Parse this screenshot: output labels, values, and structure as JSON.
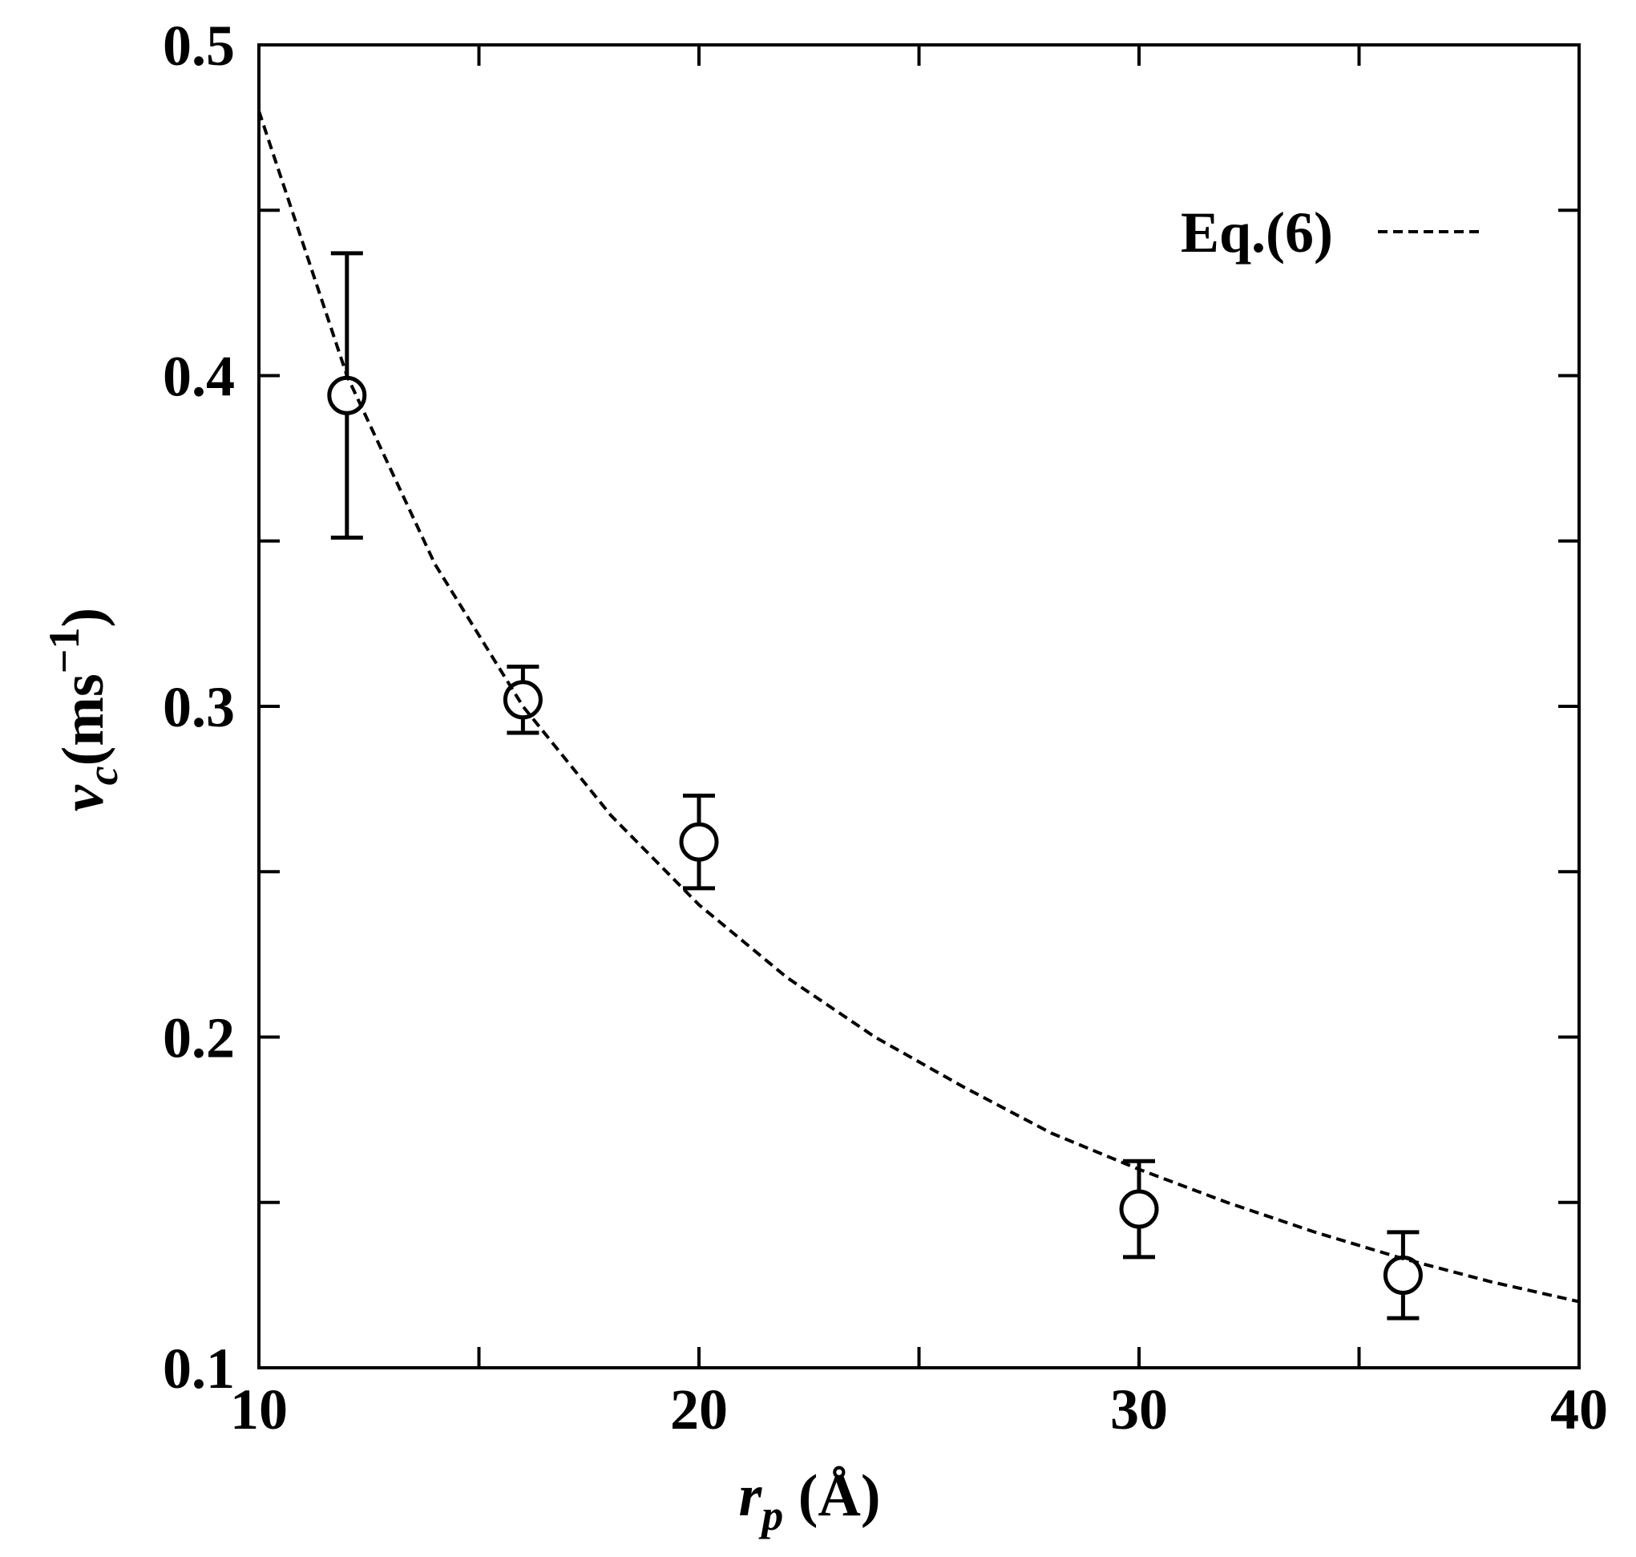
{
  "chart_data": {
    "type": "scatter",
    "xlabel": [
      "r",
      "p",
      " (Å)"
    ],
    "ylabel": [
      "v",
      "c",
      "(ms",
      "−1",
      ")"
    ],
    "xlim": [
      10,
      40
    ],
    "ylim": [
      0.1,
      0.5
    ],
    "xticks": [
      10,
      20,
      30,
      40
    ],
    "xminorticks": [
      15,
      25,
      35
    ],
    "yticks": [
      0.1,
      0.2,
      0.3,
      0.4,
      0.5
    ],
    "yminorticks": [
      0.15,
      0.25,
      0.35,
      0.45
    ],
    "legend": "upper right",
    "series": [
      {
        "type": "scatter",
        "color": "#000000",
        "x": [
          12,
          16,
          20,
          30,
          36
        ],
        "values": [
          0.394,
          0.302,
          0.259,
          0.148,
          0.128
        ],
        "errors": [
          0.043,
          0.01,
          0.014,
          0.0145,
          0.013
        ]
      },
      {
        "type": "line",
        "name": "Eq.(6)",
        "color": "#000000",
        "dashed": true,
        "x": [
          10,
          12,
          14,
          16,
          18,
          20,
          22,
          24,
          26,
          28,
          30,
          32,
          34,
          36,
          38,
          40
        ],
        "values": [
          0.48,
          0.4,
          0.343,
          0.3,
          0.267,
          0.24,
          0.218,
          0.2,
          0.185,
          0.171,
          0.16,
          0.15,
          0.141,
          0.133,
          0.126,
          0.12
        ]
      }
    ]
  }
}
